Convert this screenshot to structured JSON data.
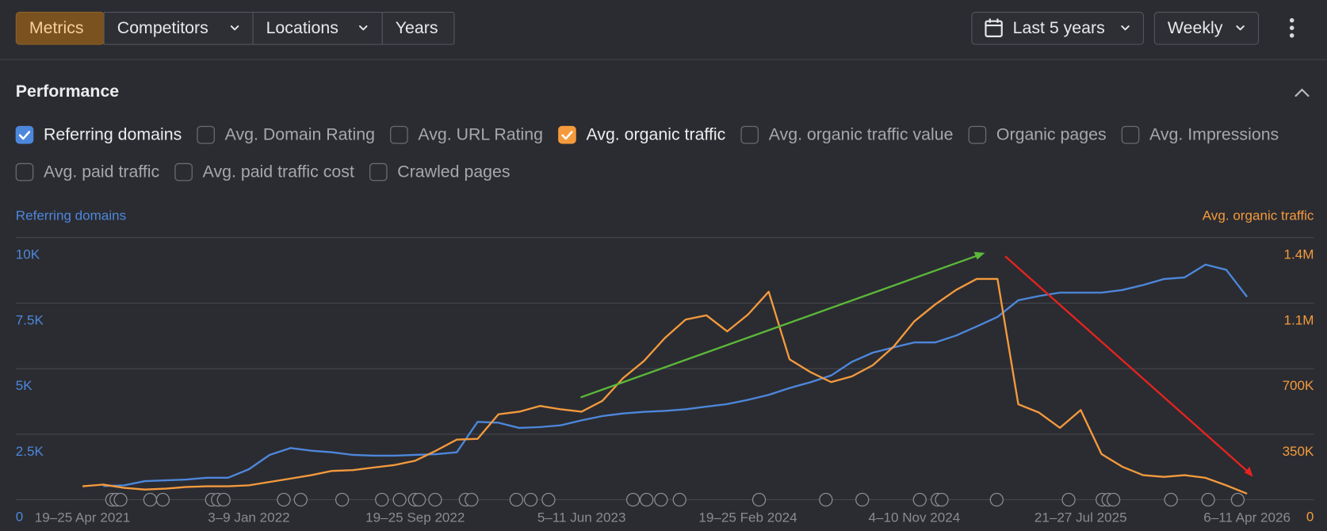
{
  "toolbar": {
    "tabs": [
      "Metrics",
      "Competitors",
      "Locations",
      "Years"
    ],
    "date_range": "Last 5 years",
    "interval": "Weekly"
  },
  "section": {
    "title": "Performance"
  },
  "metrics": [
    {
      "label": "Referring domains",
      "checked": true,
      "color": "#4d87dc"
    },
    {
      "label": "Avg. Domain Rating",
      "checked": false
    },
    {
      "label": "Avg. URL Rating",
      "checked": false
    },
    {
      "label": "Avg. organic traffic",
      "checked": true,
      "color": "#f49a3d"
    },
    {
      "label": "Avg. organic traffic value",
      "checked": false
    },
    {
      "label": "Organic pages",
      "checked": false
    },
    {
      "label": "Avg. Impressions",
      "checked": false
    },
    {
      "label": "Avg. paid traffic",
      "checked": false
    },
    {
      "label": "Avg. paid traffic cost",
      "checked": false
    },
    {
      "label": "Crawled pages",
      "checked": false
    }
  ],
  "chart_data": {
    "type": "line",
    "categories": [
      "19–25 Apr 2021",
      null,
      null,
      null,
      null,
      null,
      null,
      null,
      "3–9 Jan 2022",
      null,
      null,
      null,
      null,
      null,
      null,
      null,
      "19–25 Sep 2022",
      null,
      null,
      null,
      null,
      null,
      null,
      null,
      "5–11 Jun 2023",
      null,
      null,
      null,
      null,
      null,
      null,
      null,
      "19–25 Feb 2024",
      null,
      null,
      null,
      null,
      null,
      null,
      null,
      "4–10 Nov 2024",
      null,
      null,
      null,
      null,
      null,
      null,
      null,
      "21–27 Jul 2025",
      null,
      null,
      null,
      null,
      null,
      null,
      null,
      "6–11 Apr 2026"
    ],
    "series": [
      {
        "name": "Referring domains",
        "color": "#4d87dc",
        "values": [
          null,
          520,
          550,
          710,
          740,
          770,
          840,
          840,
          1160,
          1710,
          1970,
          1870,
          1810,
          1710,
          1680,
          1680,
          1710,
          1740,
          1810,
          2970,
          2940,
          2740,
          2770,
          2840,
          3030,
          3190,
          3290,
          3350,
          3390,
          3450,
          3550,
          3650,
          3810,
          4000,
          4260,
          4480,
          4740,
          5260,
          5610,
          5810,
          6000,
          6000,
          6260,
          6610,
          6970,
          7610,
          7770,
          7900,
          7900,
          7900,
          8000,
          8190,
          8420,
          8480,
          8970,
          8770,
          7740
        ]
      },
      {
        "name": "Avg. organic traffic",
        "color": "#f49a3d",
        "axis": "y2",
        "values": [
          72000,
          81000,
          63000,
          54000,
          59000,
          68000,
          72000,
          72000,
          77000,
          95000,
          113000,
          131000,
          154000,
          158000,
          172000,
          185000,
          208000,
          262000,
          321000,
          325000,
          456000,
          470000,
          501000,
          483000,
          470000,
          528000,
          650000,
          741000,
          863000,
          962000,
          985000,
          899000,
          989000,
          1111000,
          750000,
          682000,
          628000,
          659000,
          718000,
          817000,
          953000,
          1043000,
          1120000,
          1179000,
          1179000,
          510000,
          465000,
          384000,
          479000,
          244000,
          176000,
          131000,
          122000,
          131000,
          117000,
          77000,
          32000
        ]
      }
    ],
    "ylim": [
      0,
      10000
    ],
    "yticks": [
      0,
      {
        "value": 2500,
        "label": "2.5K"
      },
      {
        "value": 5000,
        "label": "5K"
      },
      {
        "value": 7500,
        "label": "7.5K"
      },
      {
        "value": 10000,
        "label": "10K"
      }
    ],
    "y2lim": [
      0,
      1400000
    ],
    "y2ticks": [
      0,
      {
        "value": 350000,
        "label": "350K"
      },
      {
        "value": 700000,
        "label": "700K"
      },
      {
        "value": 1050000,
        "label": "1.1M"
      },
      {
        "value": 1400000,
        "label": "1.4M"
      }
    ],
    "grid": true
  }
}
